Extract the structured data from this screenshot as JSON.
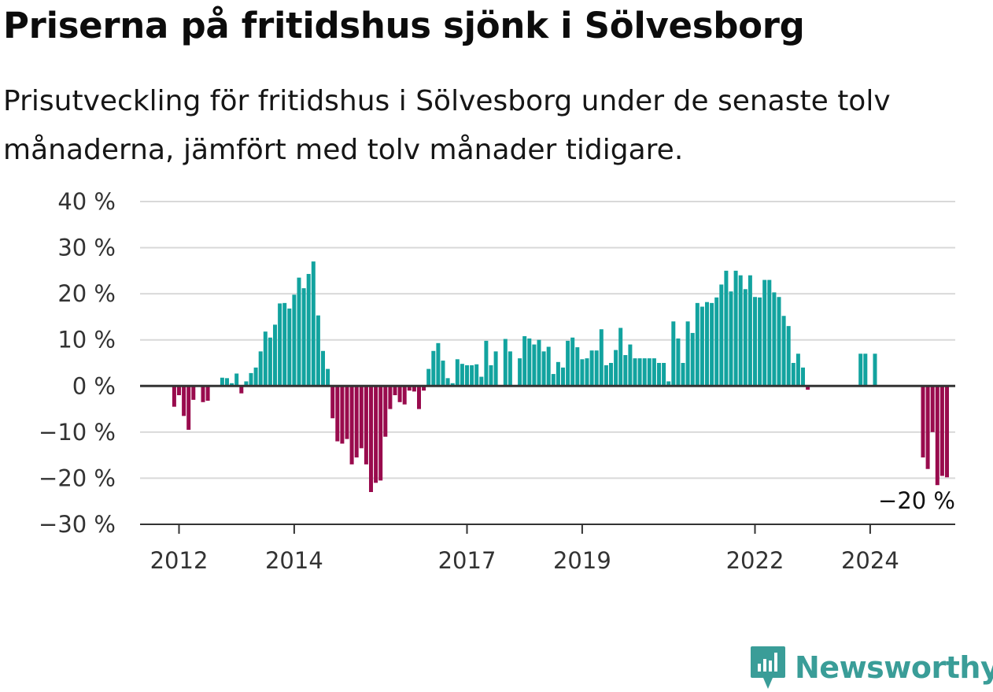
{
  "title": "Priserna på fritidshus sjönk i Sölvesborg",
  "subtitle": "Prisutveckling för fritidshus i Sölvesborg under de senaste tolv månaderna, jämfört med tolv månader tidigare.",
  "logo": {
    "text": "Newsworthy",
    "icon": "newsworthy-bars-icon",
    "color": "#3a9d98"
  },
  "colors": {
    "positive": "#12a39f",
    "negative": "#990b4d",
    "grid": "#d9d9d9",
    "zero_line": "#333333"
  },
  "chart_data": {
    "type": "bar",
    "ylim": [
      -30,
      40
    ],
    "y_ticks": [
      40,
      30,
      20,
      10,
      0,
      -10,
      -20,
      -30
    ],
    "y_tick_labels": [
      "40 %",
      "30 %",
      "20 %",
      "10 %",
      "0 %",
      "−10 %",
      "−20 %",
      "−30 %"
    ],
    "x_tick_labels": [
      "2012",
      "2014",
      "2017",
      "2019",
      "2022",
      "2024"
    ],
    "end_label": "−20 %",
    "grid": true,
    "start_month": "2011-12",
    "values": [
      -4.5,
      -2,
      -6.5,
      -9.5,
      -3,
      null,
      -3.5,
      -3.2,
      null,
      null,
      1.8,
      1.7,
      0.6,
      2.7,
      -1.6,
      1,
      2.8,
      4,
      7.5,
      11.8,
      10.5,
      13.3,
      17.9,
      18,
      16.8,
      19.8,
      23.5,
      21.2,
      24.3,
      27,
      15.3,
      7.6,
      3.7,
      -7,
      -12,
      -12.5,
      -11.5,
      -17,
      -15.5,
      -13.5,
      -17,
      -23,
      -21,
      -20.5,
      -11,
      -5,
      -2,
      -3.5,
      -4,
      -1,
      -1.2,
      -5,
      -1,
      3.7,
      7.6,
      9.3,
      5.5,
      1.7,
      0.6,
      5.8,
      4.8,
      4.5,
      4.5,
      4.7,
      2,
      9.8,
      4.5,
      7.5,
      null,
      10.2,
      7.5,
      null,
      6,
      10.8,
      10.3,
      9,
      10,
      7.5,
      8.5,
      2.6,
      5.2,
      4,
      9.8,
      10.5,
      8.4,
      5.8,
      6,
      7.7,
      7.7,
      12.3,
      4.5,
      5,
      7.8,
      12.6,
      6.7,
      9,
      6,
      6,
      6,
      6,
      6,
      5,
      5,
      1,
      14,
      10.3,
      5,
      14,
      11.5,
      18,
      17.2,
      18.2,
      18,
      19.2,
      22,
      25,
      20.5,
      25,
      24,
      21,
      24,
      19.3,
      19.2,
      23,
      23,
      20.3,
      19.3,
      15.2,
      13,
      5,
      7,
      4,
      -0.8,
      null,
      null,
      null,
      null,
      null,
      null,
      null,
      null,
      null,
      null,
      7,
      7,
      null,
      7,
      null,
      null,
      null,
      null,
      null,
      null,
      null,
      null,
      null,
      -15.5,
      -18,
      -10,
      -21.5,
      -19.5,
      -19.8
    ]
  }
}
